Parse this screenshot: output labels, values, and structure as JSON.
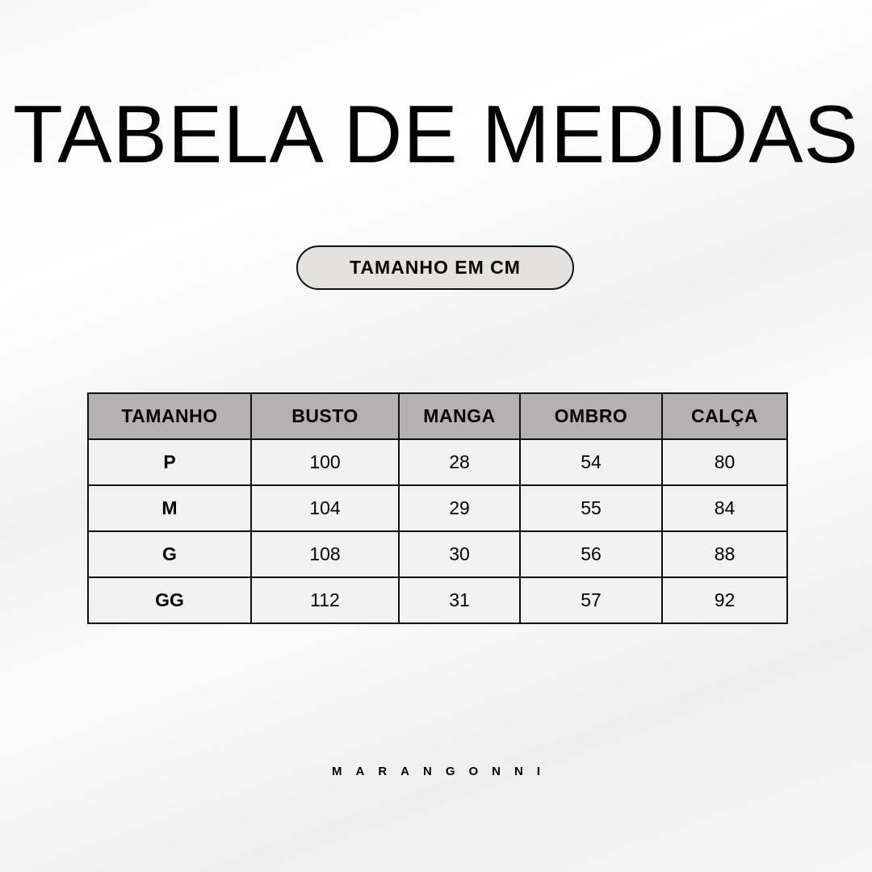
{
  "title": "TABELA DE MEDIDAS",
  "unit_label": "TAMANHO EM CM",
  "table": {
    "headers": [
      "TAMANHO",
      "BUSTO",
      "MANGA",
      "OMBRO",
      "CALÇA"
    ],
    "rows": [
      [
        "P",
        "100",
        "28",
        "54",
        "80"
      ],
      [
        "M",
        "104",
        "29",
        "55",
        "84"
      ],
      [
        "G",
        "108",
        "30",
        "56",
        "88"
      ],
      [
        "GG",
        "112",
        "31",
        "57",
        "92"
      ]
    ]
  },
  "brand": "MARANGONNI",
  "colors": {
    "header_bg": "#b3b1b2",
    "cell_bg": "#f2f2f2",
    "pill_bg": "#e3e2de"
  }
}
